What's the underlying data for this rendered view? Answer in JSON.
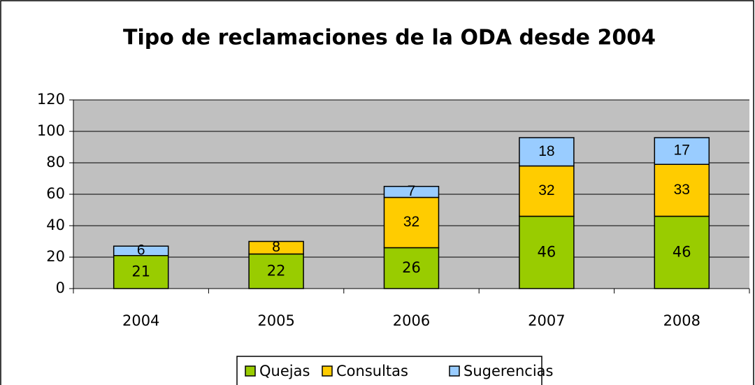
{
  "chart_data": {
    "type": "stacked_bar",
    "title": "Tipo de reclamaciones de la ODA desde 2004",
    "categories": [
      "2004",
      "2005",
      "2006",
      "2007",
      "2008"
    ],
    "series": [
      {
        "name": "Quejas",
        "color": "#99cc00",
        "values": [
          21,
          22,
          26,
          46,
          46
        ]
      },
      {
        "name": "Consultas",
        "color": "#ffcc00",
        "values": [
          null,
          8,
          32,
          32,
          33
        ]
      },
      {
        "name": "Sugerencias",
        "color": "#99ccff",
        "values": [
          6,
          null,
          7,
          18,
          17
        ]
      }
    ],
    "ylim": [
      0,
      120
    ],
    "yticks": [
      0,
      20,
      40,
      60,
      80,
      100,
      120
    ],
    "grid": true,
    "plot_background": "#c0c0c0",
    "legend": "bottom"
  }
}
